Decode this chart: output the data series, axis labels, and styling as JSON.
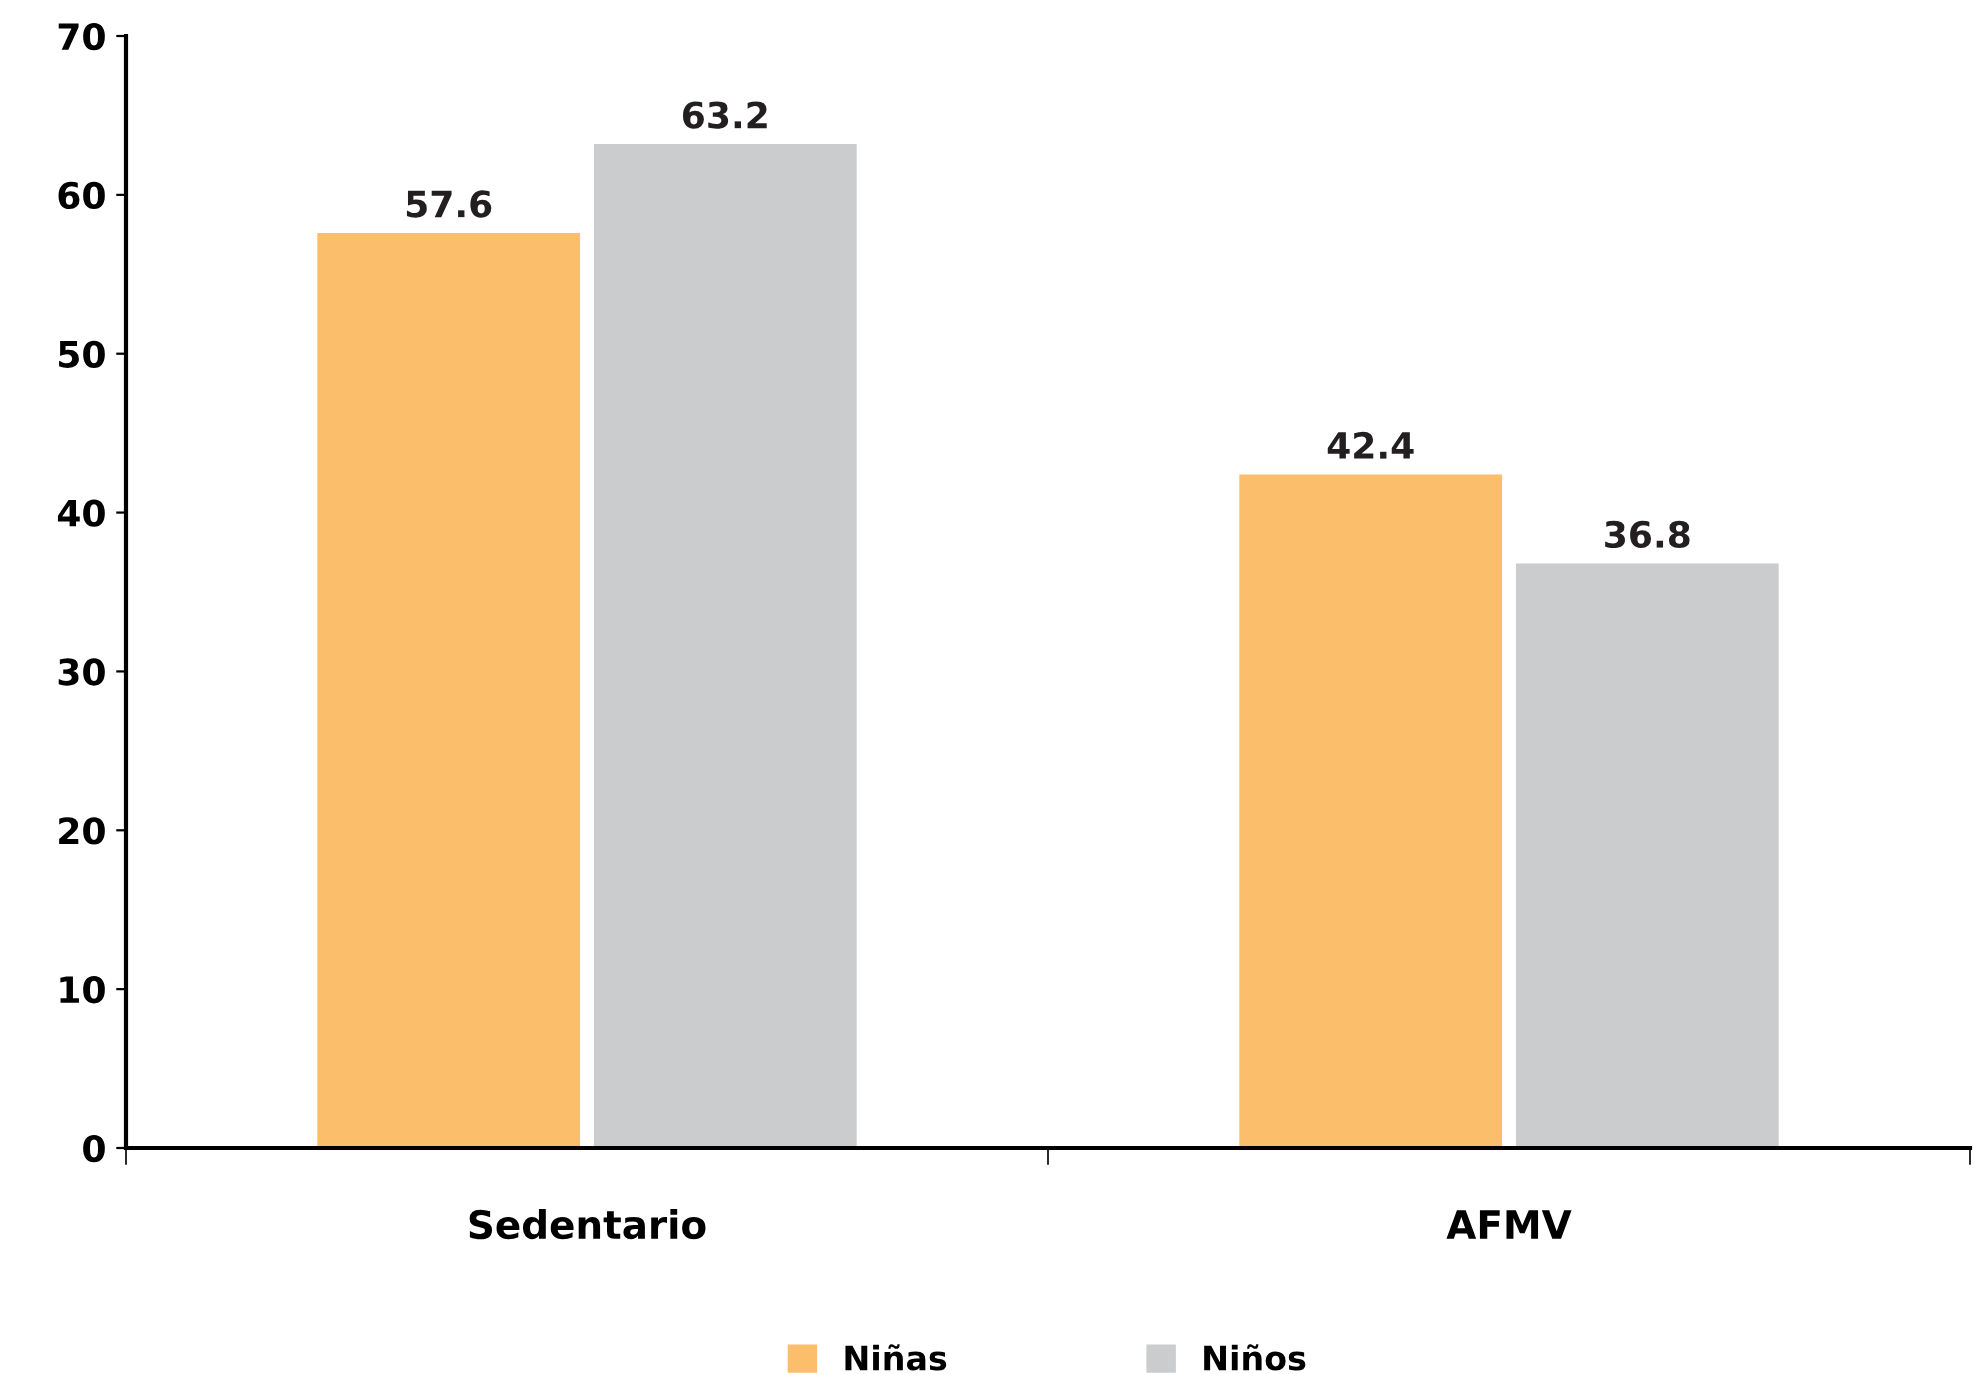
{
  "chart_data": {
    "type": "bar",
    "categories": [
      "Sedentario",
      "AFMV"
    ],
    "series": [
      {
        "name": "Niñas",
        "color": "#fbbe6a",
        "values": [
          57.6,
          42.4
        ]
      },
      {
        "name": "Niños",
        "color": "#cbcccd",
        "values": [
          63.2,
          36.8
        ]
      }
    ],
    "ylim": [
      0,
      70
    ],
    "yticks": [
      0,
      10,
      20,
      30,
      40,
      50,
      60,
      70
    ],
    "data_labels": true,
    "grid": false,
    "legend": "bottom"
  }
}
